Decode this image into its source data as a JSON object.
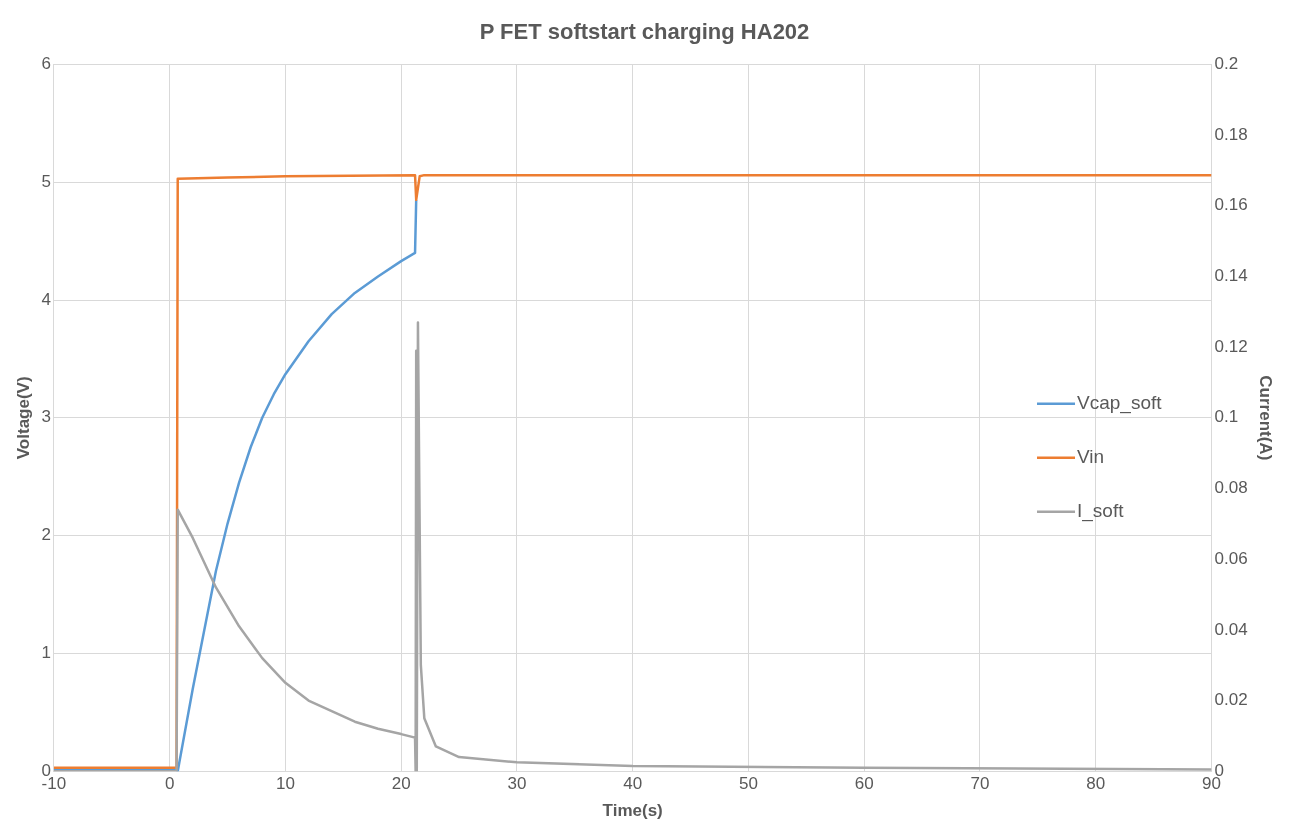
{
  "chart_data": {
    "type": "line",
    "title": "P FET softstart charging HA202",
    "xlabel": "Time(s)",
    "ylabel": "Voltage(V)",
    "y2label": "Current(A)",
    "xlim": [
      -10,
      90
    ],
    "xticks": [
      -10,
      0,
      10,
      20,
      30,
      40,
      50,
      60,
      70,
      80,
      90
    ],
    "ylim": [
      0,
      6
    ],
    "yticks": [
      0,
      1,
      2,
      3,
      4,
      5,
      6
    ],
    "y2lim": [
      0,
      0.2
    ],
    "y2ticks": [
      0,
      0.02,
      0.04,
      0.06,
      0.08,
      0.1,
      0.12,
      0.14,
      0.16,
      0.18,
      0.2
    ],
    "grid": true,
    "legend": "right",
    "marker": "none",
    "series": [
      {
        "name": "Vcap_soft",
        "color": "#5b9bd5",
        "x": [
          -10,
          0.6,
          0.7,
          2,
          3,
          4,
          5,
          6,
          7,
          8,
          9,
          10,
          12,
          14,
          16,
          18,
          20,
          21.2,
          21.3
        ],
        "values": [
          0.02,
          0.02,
          0,
          0.7,
          1.2,
          1.7,
          2.1,
          2.45,
          2.75,
          3,
          3.2,
          3.37,
          3.65,
          3.88,
          4.06,
          4.2,
          4.33,
          4.4,
          4.85
        ]
      },
      {
        "name": "Vin",
        "color": "#ed7d31",
        "x": [
          -10,
          0.6,
          0.7,
          5,
          10,
          21.2,
          21.3,
          21.6,
          22,
          90
        ],
        "values": [
          0.03,
          0.03,
          5.03,
          5.04,
          5.05,
          5.06,
          4.85,
          5.05,
          5.06,
          5.06
        ]
      },
      {
        "name": "I_soft",
        "color": "#a5a5a5",
        "axis": "y2",
        "x": [
          -10,
          0.6,
          0.7,
          2,
          4,
          6,
          8,
          10,
          12,
          14,
          16,
          18,
          20,
          21.2,
          21.25,
          21.3,
          21.35,
          21.45,
          21.7,
          22,
          23,
          25,
          30,
          40,
          60,
          90
        ],
        "values": [
          0,
          0,
          0.074,
          0.066,
          0.052,
          0.041,
          0.032,
          0.025,
          0.02,
          0.017,
          0.014,
          0.012,
          0.0105,
          0.0095,
          0,
          0.119,
          0,
          0.127,
          0.03,
          0.015,
          0.007,
          0.004,
          0.0025,
          0.0015,
          0.001,
          0.0005
        ]
      }
    ]
  }
}
